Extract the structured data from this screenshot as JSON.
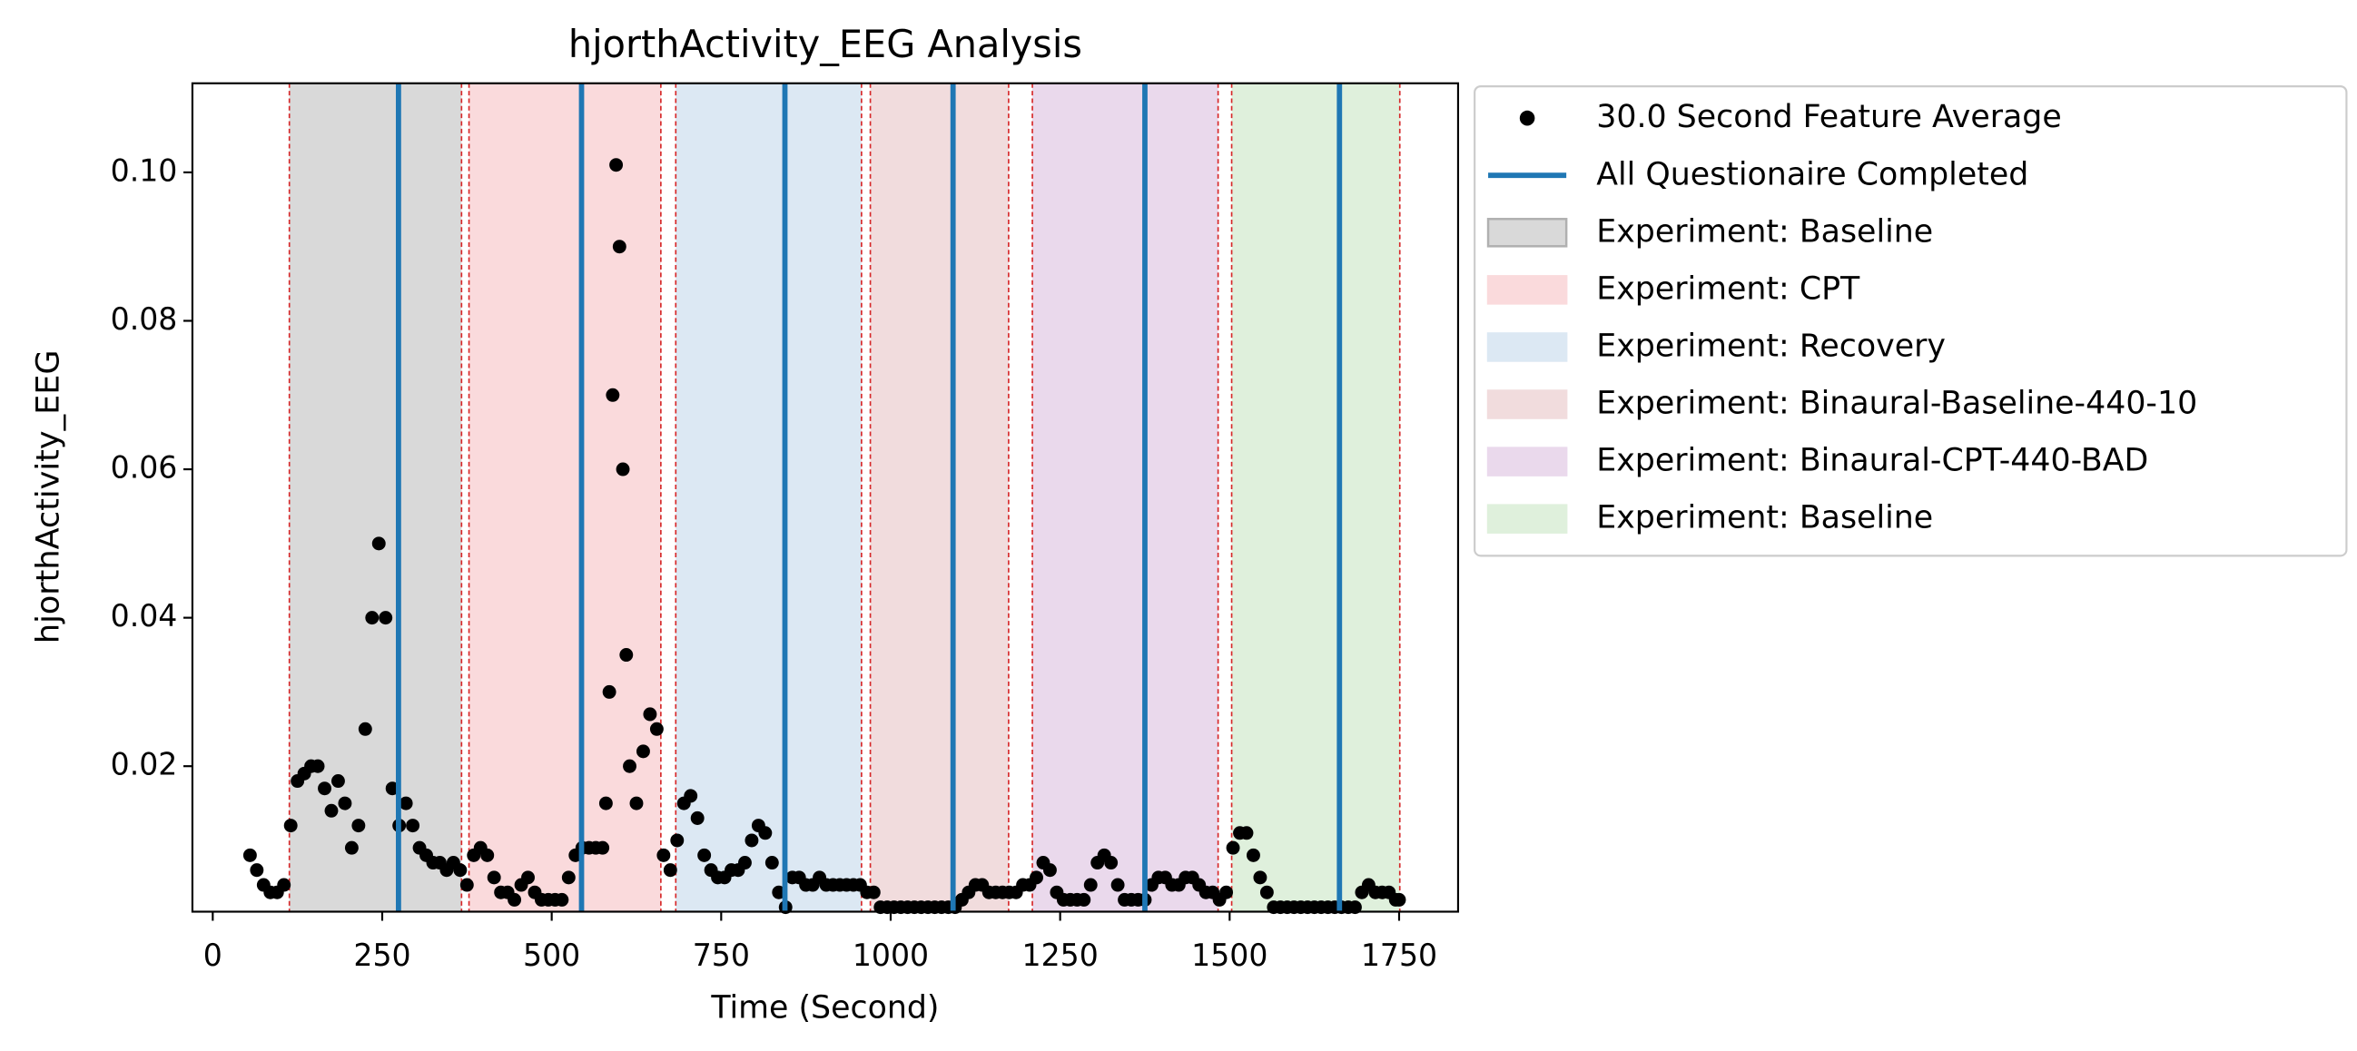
{
  "chart_data": {
    "type": "scatter",
    "title": "hjorthActivity_EEG Analysis",
    "x_label": "Time (Second)",
    "y_label": "hjorthActivity_EEG",
    "xlim": [
      -30,
      1837
    ],
    "ylim": [
      0.0004,
      0.112
    ],
    "xticks": [
      0,
      250,
      500,
      750,
      1000,
      1250,
      1500,
      1750
    ],
    "yticks": [
      0.02,
      0.04,
      0.06,
      0.08,
      {
        "value": 0.1,
        "label": "0.10"
      }
    ],
    "series": [
      {
        "name": "30.0 Second Feature Average",
        "color": "#000000",
        "x": [
          55,
          65,
          75,
          85,
          95,
          105,
          115,
          125,
          135,
          145,
          155,
          165,
          175,
          185,
          195,
          205,
          215,
          225,
          235,
          245,
          255,
          265,
          275,
          285,
          295,
          305,
          315,
          325,
          335,
          345,
          355,
          365,
          375,
          385,
          395,
          405,
          415,
          425,
          435,
          445,
          455,
          465,
          475,
          485,
          495,
          505,
          515,
          525,
          535,
          545,
          555,
          565,
          575,
          580,
          585,
          590,
          595,
          600,
          605,
          610,
          615,
          625,
          635,
          645,
          655,
          665,
          675,
          685,
          695,
          705,
          715,
          725,
          735,
          745,
          755,
          765,
          775,
          785,
          795,
          805,
          815,
          825,
          835,
          845,
          855,
          865,
          875,
          885,
          895,
          905,
          915,
          925,
          935,
          945,
          955,
          965,
          975,
          985,
          995,
          1005,
          1015,
          1025,
          1035,
          1045,
          1055,
          1065,
          1075,
          1085,
          1095,
          1105,
          1115,
          1125,
          1135,
          1145,
          1155,
          1165,
          1175,
          1185,
          1195,
          1205,
          1215,
          1225,
          1235,
          1245,
          1255,
          1265,
          1275,
          1285,
          1295,
          1305,
          1315,
          1325,
          1335,
          1345,
          1355,
          1365,
          1375,
          1385,
          1395,
          1405,
          1415,
          1425,
          1435,
          1445,
          1455,
          1465,
          1475,
          1485,
          1495,
          1505,
          1515,
          1525,
          1535,
          1545,
          1555,
          1565,
          1575,
          1585,
          1595,
          1605,
          1615,
          1625,
          1635,
          1645,
          1655,
          1665,
          1675,
          1685,
          1695,
          1705,
          1715,
          1725,
          1735,
          1745,
          1750
        ],
        "values": [
          0.008,
          0.006,
          0.004,
          0.003,
          0.003,
          0.004,
          0.012,
          0.018,
          0.019,
          0.02,
          0.02,
          0.017,
          0.014,
          0.018,
          0.015,
          0.009,
          0.012,
          0.025,
          0.04,
          0.05,
          0.04,
          0.017,
          0.012,
          0.015,
          0.012,
          0.009,
          0.008,
          0.007,
          0.007,
          0.006,
          0.007,
          0.006,
          0.004,
          0.008,
          0.009,
          0.008,
          0.005,
          0.003,
          0.003,
          0.002,
          0.004,
          0.005,
          0.003,
          0.002,
          0.002,
          0.002,
          0.002,
          0.005,
          0.008,
          0.009,
          0.009,
          0.009,
          0.009,
          0.015,
          0.03,
          0.07,
          0.101,
          0.09,
          0.06,
          0.035,
          0.02,
          0.015,
          0.022,
          0.027,
          0.025,
          0.008,
          0.006,
          0.01,
          0.015,
          0.016,
          0.013,
          0.008,
          0.006,
          0.005,
          0.005,
          0.006,
          0.006,
          0.007,
          0.01,
          0.012,
          0.011,
          0.007,
          0.003,
          0.001,
          0.005,
          0.005,
          0.004,
          0.004,
          0.005,
          0.004,
          0.004,
          0.004,
          0.004,
          0.004,
          0.004,
          0.003,
          0.003,
          0.001,
          0.001,
          0.001,
          0.001,
          0.001,
          0.001,
          0.001,
          0.001,
          0.001,
          0.001,
          0.001,
          0.001,
          0.002,
          0.003,
          0.004,
          0.004,
          0.003,
          0.003,
          0.003,
          0.003,
          0.003,
          0.004,
          0.004,
          0.005,
          0.007,
          0.006,
          0.003,
          0.002,
          0.002,
          0.002,
          0.002,
          0.004,
          0.007,
          0.008,
          0.007,
          0.004,
          0.002,
          0.002,
          0.002,
          0.002,
          0.004,
          0.005,
          0.005,
          0.004,
          0.004,
          0.005,
          0.005,
          0.004,
          0.003,
          0.003,
          0.002,
          0.003,
          0.009,
          0.011,
          0.011,
          0.008,
          0.005,
          0.003,
          0.001,
          0.001,
          0.001,
          0.001,
          0.001,
          0.001,
          0.001,
          0.001,
          0.001,
          0.001,
          0.001,
          0.001,
          0.001,
          0.003,
          0.004,
          0.003,
          0.003,
          0.003,
          0.002,
          0.002
        ]
      }
    ],
    "markers": {
      "name": "All Questionaire Completed",
      "color": "#1f77b4",
      "x": [
        274,
        544,
        844,
        1092,
        1375,
        1662
      ]
    },
    "regions": [
      {
        "name": "Experiment: Baseline",
        "color": "#d9d9d9",
        "start": 113,
        "end": 367
      },
      {
        "name": "Experiment: CPT",
        "color": "#fadadc",
        "start": 378,
        "end": 661
      },
      {
        "name": "Experiment: Recovery",
        "color": "#dce8f3",
        "start": 683,
        "end": 957
      },
      {
        "name": "Experiment: Binaural-Baseline-440-10",
        "color": "#f1dcdd",
        "start": 970,
        "end": 1174
      },
      {
        "name": "Experiment: Binaural-CPT-440-BAD",
        "color": "#ead9ec",
        "start": 1209,
        "end": 1483
      },
      {
        "name": "Experiment: Baseline",
        "color": "#dff0dc",
        "start": 1503,
        "end": 1751
      }
    ]
  }
}
